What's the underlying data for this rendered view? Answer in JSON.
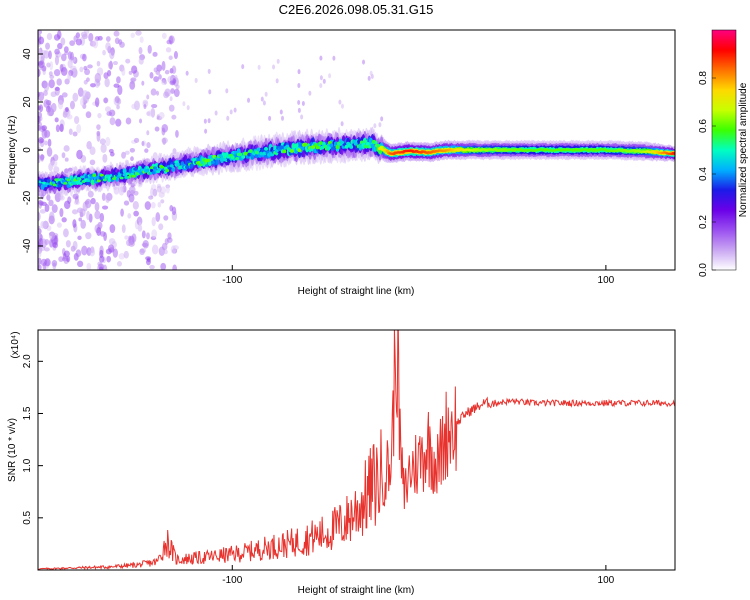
{
  "title": "C2E6.2026.098.05.31.G15",
  "chart_data": [
    {
      "type": "heatmap",
      "title": "C2E6.2026.098.05.31.G15",
      "xlabel": "Height of straight line (km)",
      "ylabel": "Frequency (Hz)",
      "xlim": [
        -204,
        137
      ],
      "ylim": [
        -50,
        50
      ],
      "x_ticks": [
        "-100",
        "100"
      ],
      "x_tick_values": [
        -100,
        100
      ],
      "y_ticks": [
        "-40",
        "-20",
        "0",
        "20",
        "40"
      ],
      "y_tick_values": [
        -40,
        -20,
        0,
        20,
        40
      ],
      "colorbar": {
        "label": "Normalized spectral amplitude",
        "range": [
          0.0,
          1.0
        ],
        "ticks": [
          "0.0",
          "0.2",
          "0.4",
          "0.6",
          "0.8"
        ],
        "tick_values": [
          0.0,
          0.2,
          0.4,
          0.6,
          0.8
        ],
        "colormap": [
          "#ffffff",
          "#c9a6f2",
          "#9a4ff0",
          "#6a00e8",
          "#1b1be8",
          "#00b0ff",
          "#00ffc0",
          "#3cff00",
          "#c8ff00",
          "#ffd800",
          "#ff7000",
          "#ff0000",
          "#ff0080"
        ]
      },
      "ridge": {
        "x": [
          -204,
          -190,
          -175,
          -160,
          -145,
          -130,
          -115,
          -100,
          -85,
          -70,
          -55,
          -40,
          -25,
          -15,
          -5,
          5,
          15,
          30,
          60,
          100,
          120,
          137
        ],
        "frequency": [
          -14.5,
          -13.5,
          -12,
          -10.5,
          -8.5,
          -6.5,
          -4.5,
          -2.5,
          -1,
          0.5,
          1.5,
          2,
          2.5,
          -1.5,
          -0.5,
          -1,
          0,
          0,
          0,
          0,
          -0.5,
          -1.5
        ],
        "amplitude": [
          0.45,
          0.5,
          0.5,
          0.45,
          0.5,
          0.45,
          0.5,
          0.5,
          0.45,
          0.5,
          0.5,
          0.45,
          0.5,
          0.85,
          0.9,
          0.85,
          0.8,
          0.65,
          0.6,
          0.6,
          0.65,
          0.9
        ],
        "width_hz": [
          3,
          3,
          3,
          3,
          3,
          3.5,
          3.5,
          3.5,
          4,
          4,
          4,
          4,
          4,
          2.5,
          2.5,
          2.5,
          2.5,
          2.5,
          2.5,
          2.5,
          2.5,
          2
        ]
      }
    },
    {
      "type": "line",
      "xlabel": "Height of straight line (km)",
      "ylabel": "SNR (10 * v/v)",
      "y_scale": "(x10⁴)",
      "xlim": [
        -204,
        137
      ],
      "ylim": [
        0,
        2.3
      ],
      "x_ticks": [
        "-100",
        "100"
      ],
      "x_tick_values": [
        -100,
        100
      ],
      "y_ticks": [
        "0.5",
        "1.0",
        "1.5",
        "2.0"
      ],
      "y_tick_values": [
        0.5,
        1.0,
        1.5,
        2.0
      ],
      "color": "#e8322d",
      "series": [
        {
          "name": "SNR",
          "x": [
            -204,
            -185,
            -165,
            -150,
            -140,
            -135,
            -130,
            -115,
            -100,
            -90,
            -80,
            -70,
            -60,
            -50,
            -40,
            -35,
            -30,
            -25,
            -20,
            -15,
            -12,
            -10,
            -8,
            -5,
            0,
            5,
            10,
            15,
            20,
            25,
            30,
            35,
            40,
            50,
            60,
            80,
            100,
            120,
            137
          ],
          "y": [
            0.01,
            0.02,
            0.03,
            0.05,
            0.08,
            0.28,
            0.1,
            0.12,
            0.15,
            0.18,
            0.22,
            0.25,
            0.3,
            0.35,
            0.45,
            0.55,
            0.65,
            0.8,
            0.9,
            1.0,
            2.3,
            1.1,
            0.7,
            0.95,
            1.05,
            1.2,
            1.0,
            1.35,
            1.4,
            1.5,
            1.55,
            1.6,
            1.6,
            1.62,
            1.6,
            1.6,
            1.6,
            1.6,
            1.6
          ]
        }
      ]
    }
  ]
}
